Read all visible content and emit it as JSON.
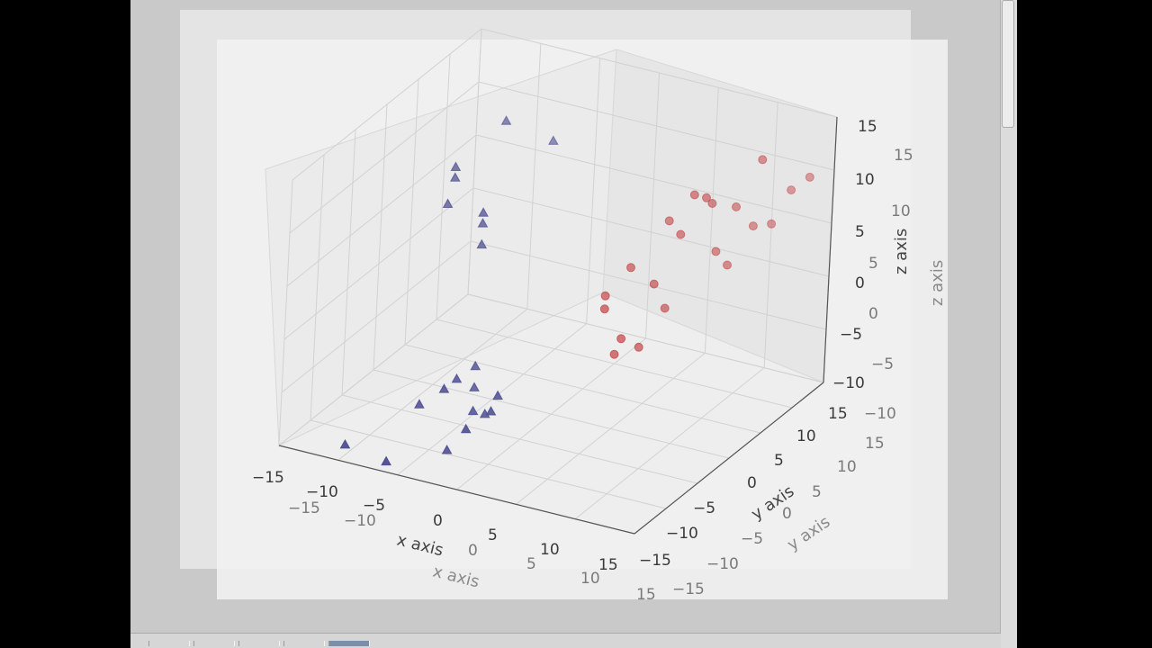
{
  "chart_data": {
    "type": "scatter",
    "projection": "3d",
    "grid": true,
    "xlabel": "x axis",
    "ylabel": "y axis",
    "zlabel": "z axis",
    "xlim": [
      -15,
      15
    ],
    "ylim": [
      -15,
      15
    ],
    "zlim": [
      -10,
      15
    ],
    "x_ticks": [
      "−15",
      "−10",
      "−5",
      "0",
      "5",
      "10",
      "15"
    ],
    "y_ticks": [
      "−15",
      "−10",
      "−5",
      "0",
      "5",
      "10",
      "15"
    ],
    "z_ticks": [
      "−10",
      "−5",
      "0",
      "5",
      "10",
      "15"
    ],
    "series": [
      {
        "marker": "circle",
        "color": "#c0393b",
        "points": [
          {
            "x": 8,
            "y": 6,
            "z": 10
          },
          {
            "x": 12,
            "y": 9,
            "z": 13
          },
          {
            "x": 6,
            "y": 6,
            "z": 7
          },
          {
            "x": 9,
            "y": 7,
            "z": 9
          },
          {
            "x": 10,
            "y": 9,
            "z": 8
          },
          {
            "x": 13,
            "y": 12,
            "z": 9
          },
          {
            "x": 7,
            "y": 6,
            "z": 6
          },
          {
            "x": 9,
            "y": 8,
            "z": 4
          },
          {
            "x": 11,
            "y": 10,
            "z": 6
          },
          {
            "x": 6,
            "y": 4,
            "z": 2
          },
          {
            "x": 4,
            "y": 4,
            "z": 3
          },
          {
            "x": 3,
            "y": 2,
            "z": 1
          },
          {
            "x": 7,
            "y": 4,
            "z": 0
          },
          {
            "x": 5,
            "y": 1,
            "z": -2
          },
          {
            "x": 10,
            "y": 8,
            "z": 3
          },
          {
            "x": 6,
            "y": 2,
            "z": -3
          },
          {
            "x": 5,
            "y": 0,
            "z": -3
          },
          {
            "x": 12,
            "y": 11,
            "z": 6
          },
          {
            "x": 14,
            "y": 13,
            "z": 10
          },
          {
            "x": 4,
            "y": 0,
            "z": 1
          },
          {
            "x": 9,
            "y": 6,
            "z": 10
          }
        ]
      },
      {
        "marker": "triangle",
        "color": "#4c4c8f",
        "points": [
          {
            "x": -8,
            "y": -2,
            "z": 12
          },
          {
            "x": -6,
            "y": 2,
            "z": 15
          },
          {
            "x": -8,
            "y": -2,
            "z": 11
          },
          {
            "x": -8,
            "y": -3,
            "z": 9
          },
          {
            "x": -5,
            "y": -3,
            "z": 9
          },
          {
            "x": -5,
            "y": -3,
            "z": 8
          },
          {
            "x": -5,
            "y": -3,
            "z": 6
          },
          {
            "x": -3,
            "y": 4,
            "z": 13
          },
          {
            "x": -4,
            "y": -8,
            "z": -4
          },
          {
            "x": -3,
            "y": -7,
            "z": -3
          },
          {
            "x": -3,
            "y": -7,
            "z": -5
          },
          {
            "x": -4,
            "y": -10,
            "z": -4
          },
          {
            "x": -2,
            "y": -9,
            "z": -6
          },
          {
            "x": 0,
            "y": -9,
            "z": -4
          },
          {
            "x": 0,
            "y": -10,
            "z": -5
          },
          {
            "x": -1,
            "y": -12,
            "z": -6
          },
          {
            "x": -6,
            "y": -10,
            "z": -6
          },
          {
            "x": -10,
            "y": -14,
            "z": -9
          },
          {
            "x": -3,
            "y": -11,
            "z": -9
          },
          {
            "x": -6,
            "y": -15,
            "z": -9
          },
          {
            "x": -1,
            "y": -9,
            "z": -6
          }
        ]
      }
    ]
  }
}
